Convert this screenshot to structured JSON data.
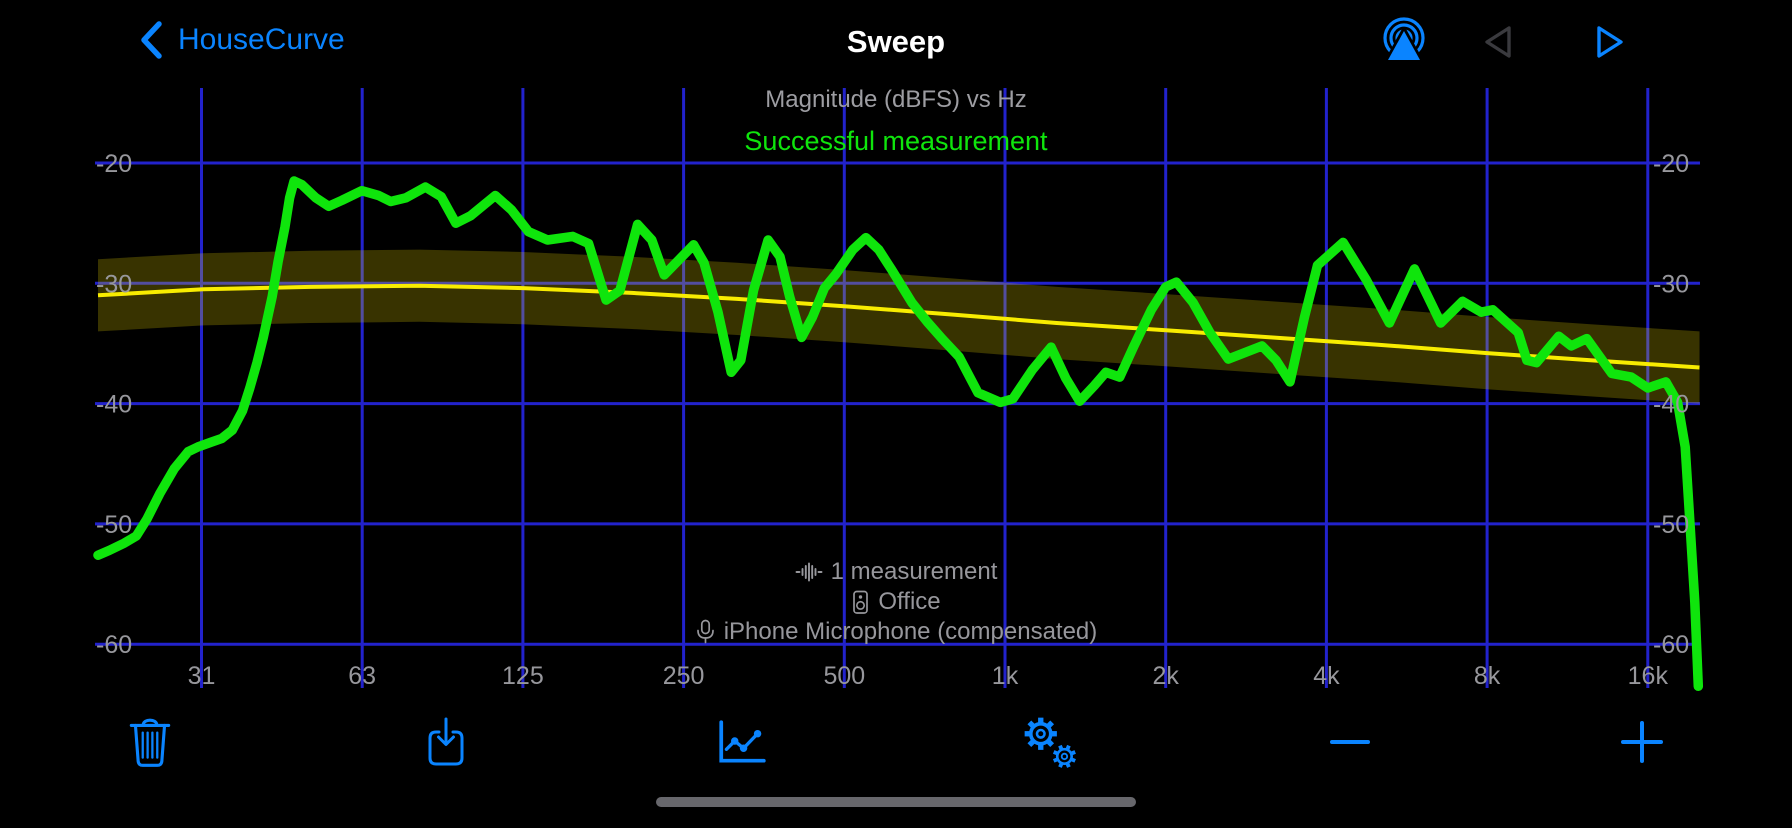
{
  "nav": {
    "back_label": "HouseCurve",
    "title": "Sweep",
    "icons": [
      "back-chevron-icon",
      "airplay-audio-icon",
      "play-backward-icon",
      "play-forward-icon"
    ]
  },
  "subtitle": "Magnitude (dBFS) vs Hz",
  "status": "Successful measurement",
  "annotations": [
    {
      "icon": "waveform-icon",
      "text": "1 measurement"
    },
    {
      "icon": "speaker-icon",
      "text": "Office"
    },
    {
      "icon": "microphone-icon",
      "text": "iPhone Microphone (compensated)"
    }
  ],
  "toolbar": {
    "items": [
      "trash-icon",
      "save-icon",
      "chart-icon",
      "settings-gears-icon",
      "zoom-out-icon",
      "zoom-in-icon"
    ]
  },
  "colors": {
    "accent": "#0A84FF",
    "disabled": "#3A3A3E",
    "grid_blue": "#2222CC",
    "label_gray": "#97979C",
    "subtitle_gray": "#9D9DA2",
    "curve_green": "#0FE50C",
    "target_yellow": "#F8EC00",
    "band_fill": "rgba(255,230,0,0.22)",
    "title_white": "#FFFFFF",
    "home_bar": "#67676C"
  },
  "chart_data": {
    "type": "line",
    "title": "Magnitude (dBFS) vs Hz",
    "x_scale": "log",
    "x_range_hz": [
      20,
      20000
    ],
    "y_range_db": [
      -66,
      -14
    ],
    "grid": true,
    "x_ticks": [
      {
        "value": 31.25,
        "label": "31"
      },
      {
        "value": 62.5,
        "label": "63"
      },
      {
        "value": 125,
        "label": "125"
      },
      {
        "value": 250,
        "label": "250"
      },
      {
        "value": 500,
        "label": "500"
      },
      {
        "value": 1000,
        "label": "1k"
      },
      {
        "value": 2000,
        "label": "2k"
      },
      {
        "value": 4000,
        "label": "4k"
      },
      {
        "value": 8000,
        "label": "8k"
      },
      {
        "value": 16000,
        "label": "16k"
      }
    ],
    "y_ticks": [
      {
        "value": -20,
        "label": "-20"
      },
      {
        "value": -30,
        "label": "-30"
      },
      {
        "value": -40,
        "label": "-40"
      },
      {
        "value": -50,
        "label": "-50"
      },
      {
        "value": -60,
        "label": "-60"
      }
    ],
    "series": [
      {
        "name": "measurement",
        "style": "measurement",
        "points": [
          [
            20,
            -52.6
          ],
          [
            21,
            -52.2
          ],
          [
            22.4,
            -51.6
          ],
          [
            23.6,
            -51.0
          ],
          [
            24.7,
            -49.6
          ],
          [
            26.1,
            -47.5
          ],
          [
            27.8,
            -45.4
          ],
          [
            29.5,
            -44.0
          ],
          [
            30.8,
            -43.6
          ],
          [
            32.6,
            -43.2
          ],
          [
            34.1,
            -42.9
          ],
          [
            35.7,
            -42.2
          ],
          [
            37.3,
            -40.6
          ],
          [
            38.5,
            -38.7
          ],
          [
            39.7,
            -36.6
          ],
          [
            40.8,
            -34.5
          ],
          [
            42.4,
            -31.1
          ],
          [
            43.5,
            -28.2
          ],
          [
            44.8,
            -25.3
          ],
          [
            45.7,
            -22.9
          ],
          [
            46.6,
            -21.5
          ],
          [
            48.2,
            -21.8
          ],
          [
            51.2,
            -22.9
          ],
          [
            54.1,
            -23.6
          ],
          [
            57.3,
            -23.1
          ],
          [
            62.4,
            -22.3
          ],
          [
            67.1,
            -22.7
          ],
          [
            70.7,
            -23.2
          ],
          [
            75.4,
            -22.9
          ],
          [
            82.1,
            -22.0
          ],
          [
            87.9,
            -22.8
          ],
          [
            93.6,
            -25.0
          ],
          [
            99.7,
            -24.4
          ],
          [
            111,
            -22.7
          ],
          [
            119,
            -23.9
          ],
          [
            128,
            -25.7
          ],
          [
            139,
            -26.4
          ],
          [
            155,
            -26.1
          ],
          [
            166,
            -26.7
          ],
          [
            179,
            -31.4
          ],
          [
            190,
            -30.6
          ],
          [
            205,
            -25.1
          ],
          [
            218,
            -26.4
          ],
          [
            230,
            -29.3
          ],
          [
            261,
            -26.8
          ],
          [
            273,
            -28.3
          ],
          [
            290,
            -32.4
          ],
          [
            307,
            -37.4
          ],
          [
            320,
            -36.4
          ],
          [
            338,
            -30.6
          ],
          [
            360,
            -26.4
          ],
          [
            379,
            -27.8
          ],
          [
            395,
            -31.1
          ],
          [
            416,
            -34.5
          ],
          [
            436,
            -32.8
          ],
          [
            459,
            -30.4
          ],
          [
            483,
            -29.2
          ],
          [
            519,
            -27.2
          ],
          [
            549,
            -26.2
          ],
          [
            580,
            -27.2
          ],
          [
            614,
            -28.9
          ],
          [
            669,
            -31.6
          ],
          [
            715,
            -33.2
          ],
          [
            762,
            -34.6
          ],
          [
            820,
            -36.1
          ],
          [
            890,
            -39.1
          ],
          [
            980,
            -39.9
          ],
          [
            1035,
            -39.6
          ],
          [
            1125,
            -37.2
          ],
          [
            1220,
            -35.3
          ],
          [
            1300,
            -37.9
          ],
          [
            1380,
            -39.8
          ],
          [
            1470,
            -38.5
          ],
          [
            1545,
            -37.4
          ],
          [
            1640,
            -37.8
          ],
          [
            1740,
            -35.3
          ],
          [
            1880,
            -32.2
          ],
          [
            2000,
            -30.3
          ],
          [
            2095,
            -29.9
          ],
          [
            2250,
            -31.6
          ],
          [
            2420,
            -34.1
          ],
          [
            2620,
            -36.3
          ],
          [
            2800,
            -35.8
          ],
          [
            3030,
            -35.2
          ],
          [
            3220,
            -36.4
          ],
          [
            3420,
            -38.2
          ],
          [
            3640,
            -32.8
          ],
          [
            3850,
            -28.5
          ],
          [
            4300,
            -26.6
          ],
          [
            4750,
            -29.7
          ],
          [
            5250,
            -33.3
          ],
          [
            5850,
            -28.8
          ],
          [
            6550,
            -33.3
          ],
          [
            7200,
            -31.5
          ],
          [
            7800,
            -32.4
          ],
          [
            8200,
            -32.2
          ],
          [
            9150,
            -34.1
          ],
          [
            9500,
            -36.4
          ],
          [
            9900,
            -36.6
          ],
          [
            10900,
            -34.4
          ],
          [
            11500,
            -35.2
          ],
          [
            12300,
            -34.6
          ],
          [
            13700,
            -37.5
          ],
          [
            14900,
            -37.8
          ],
          [
            16000,
            -38.7
          ],
          [
            17300,
            -38.2
          ],
          [
            18200,
            -39.9
          ],
          [
            18800,
            -43.6
          ],
          [
            19200,
            -50.0
          ],
          [
            19600,
            -56.5
          ],
          [
            19900,
            -63.5
          ]
        ]
      },
      {
        "name": "target",
        "style": "target",
        "band_delta_db": 3,
        "points": [
          [
            20,
            -31.0
          ],
          [
            31.5,
            -30.5
          ],
          [
            50,
            -30.3
          ],
          [
            80,
            -30.2
          ],
          [
            125,
            -30.4
          ],
          [
            200,
            -30.8
          ],
          [
            315,
            -31.3
          ],
          [
            500,
            -31.9
          ],
          [
            800,
            -32.6
          ],
          [
            1250,
            -33.3
          ],
          [
            2000,
            -33.9
          ],
          [
            3150,
            -34.5
          ],
          [
            5000,
            -35.1
          ],
          [
            8000,
            -35.8
          ],
          [
            12500,
            -36.4
          ],
          [
            20000,
            -37.0
          ]
        ]
      }
    ]
  }
}
